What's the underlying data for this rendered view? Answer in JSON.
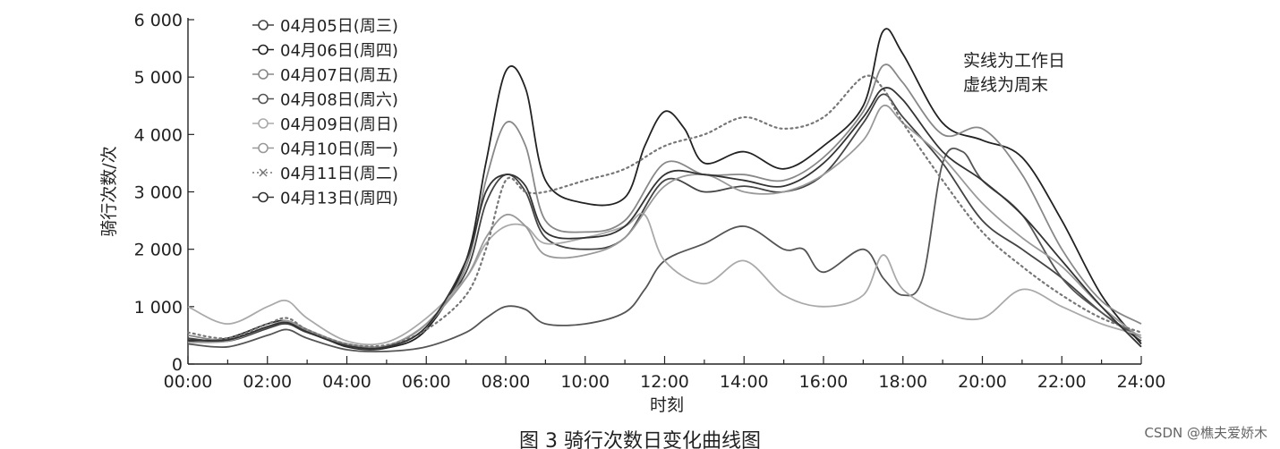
{
  "chart_data": {
    "type": "line",
    "title": "",
    "xlabel": "时刻",
    "ylabel": "骑行次数/次",
    "xlim": [
      0,
      24
    ],
    "ylim": [
      0,
      6000
    ],
    "x_tick_labels": [
      "00:00",
      "02:00",
      "04:00",
      "06:00",
      "08:00",
      "10:00",
      "12:00",
      "14:00",
      "16:00",
      "18:00",
      "20:00",
      "22:00",
      "24:00"
    ],
    "y_tick_labels": [
      "0",
      "1 000",
      "2 000",
      "3 000",
      "4 000",
      "5 000",
      "6 000"
    ],
    "grid": false,
    "legend_placement": "top-left",
    "annotations": [
      "实线为工作日",
      "虚线为周末"
    ],
    "caption": "图 3   骑行次数日变化曲线图",
    "series": [
      {
        "name": "04月05日(周三)",
        "style": "solid",
        "color": "#444444",
        "marker": "circle",
        "points": [
          [
            0,
            450
          ],
          [
            1,
            400
          ],
          [
            2,
            620
          ],
          [
            2.5,
            700
          ],
          [
            3,
            550
          ],
          [
            4,
            350
          ],
          [
            5,
            320
          ],
          [
            6,
            700
          ],
          [
            7,
            1600
          ],
          [
            7.5,
            2800
          ],
          [
            8,
            3300
          ],
          [
            8.5,
            3000
          ],
          [
            9,
            2200
          ],
          [
            10,
            2000
          ],
          [
            11,
            2200
          ],
          [
            12,
            3200
          ],
          [
            13,
            3000
          ],
          [
            14,
            3100
          ],
          [
            15,
            3000
          ],
          [
            16,
            3300
          ],
          [
            17,
            4200
          ],
          [
            17.5,
            4700
          ],
          [
            18,
            4300
          ],
          [
            19,
            3500
          ],
          [
            20,
            2500
          ],
          [
            21,
            2000
          ],
          [
            22,
            1500
          ],
          [
            23,
            900
          ],
          [
            24,
            400
          ]
        ]
      },
      {
        "name": "04月06日(周四)",
        "style": "solid",
        "color": "#222222",
        "marker": "circle",
        "points": [
          [
            0,
            400
          ],
          [
            1,
            450
          ],
          [
            2,
            700
          ],
          [
            2.5,
            750
          ],
          [
            3,
            600
          ],
          [
            4,
            300
          ],
          [
            5,
            280
          ],
          [
            6,
            600
          ],
          [
            7,
            1800
          ],
          [
            7.5,
            3500
          ],
          [
            8,
            5100
          ],
          [
            8.5,
            4800
          ],
          [
            9,
            3200
          ],
          [
            10,
            2800
          ],
          [
            11,
            2900
          ],
          [
            11.5,
            3800
          ],
          [
            12,
            4400
          ],
          [
            12.5,
            4100
          ],
          [
            13,
            3500
          ],
          [
            14,
            3700
          ],
          [
            15,
            3400
          ],
          [
            16,
            3800
          ],
          [
            17,
            4500
          ],
          [
            17.5,
            5800
          ],
          [
            18,
            5400
          ],
          [
            19,
            4200
          ],
          [
            20,
            3900
          ],
          [
            21,
            3600
          ],
          [
            22,
            2500
          ],
          [
            23,
            1200
          ],
          [
            24,
            350
          ]
        ]
      },
      {
        "name": "04月07日(周五)",
        "style": "solid",
        "color": "#888888",
        "marker": "circle",
        "points": [
          [
            0,
            500
          ],
          [
            1,
            420
          ],
          [
            2,
            650
          ],
          [
            2.5,
            720
          ],
          [
            3,
            580
          ],
          [
            4,
            320
          ],
          [
            5,
            300
          ],
          [
            6,
            650
          ],
          [
            7,
            1700
          ],
          [
            7.5,
            3200
          ],
          [
            8,
            4200
          ],
          [
            8.5,
            3800
          ],
          [
            9,
            2500
          ],
          [
            10,
            2300
          ],
          [
            11,
            2500
          ],
          [
            12,
            3500
          ],
          [
            13,
            3300
          ],
          [
            14,
            3300
          ],
          [
            15,
            3200
          ],
          [
            16,
            3600
          ],
          [
            17,
            4400
          ],
          [
            17.5,
            5200
          ],
          [
            18,
            4900
          ],
          [
            19,
            4000
          ],
          [
            20,
            4100
          ],
          [
            21,
            3300
          ],
          [
            22,
            2000
          ],
          [
            23,
            1100
          ],
          [
            24,
            700
          ]
        ]
      },
      {
        "name": "04月08日(周六)",
        "style": "solid",
        "color": "#555555",
        "marker": "circle",
        "points": [
          [
            0,
            350
          ],
          [
            1,
            300
          ],
          [
            2,
            500
          ],
          [
            2.5,
            600
          ],
          [
            3,
            450
          ],
          [
            4,
            250
          ],
          [
            5,
            220
          ],
          [
            6,
            300
          ],
          [
            7,
            550
          ],
          [
            7.5,
            800
          ],
          [
            8,
            1000
          ],
          [
            8.5,
            950
          ],
          [
            9,
            700
          ],
          [
            10,
            700
          ],
          [
            11,
            900
          ],
          [
            11.5,
            1300
          ],
          [
            12,
            1800
          ],
          [
            13,
            2100
          ],
          [
            14,
            2400
          ],
          [
            15,
            2000
          ],
          [
            15.5,
            2000
          ],
          [
            16,
            1600
          ],
          [
            17,
            2000
          ],
          [
            17.5,
            1500
          ],
          [
            18,
            1200
          ],
          [
            18.5,
            1500
          ],
          [
            19,
            3500
          ],
          [
            19.5,
            3700
          ],
          [
            20,
            3200
          ],
          [
            21,
            2600
          ],
          [
            22,
            1500
          ],
          [
            23,
            900
          ],
          [
            24,
            450
          ]
        ]
      },
      {
        "name": "04月09日(周日)",
        "style": "solid",
        "color": "#aaaaaa",
        "marker": "circle",
        "points": [
          [
            0,
            1000
          ],
          [
            1,
            700
          ],
          [
            2,
            1000
          ],
          [
            2.5,
            1100
          ],
          [
            3,
            800
          ],
          [
            4,
            400
          ],
          [
            5,
            380
          ],
          [
            6,
            800
          ],
          [
            7,
            1500
          ],
          [
            7.5,
            2100
          ],
          [
            8,
            2400
          ],
          [
            8.5,
            2400
          ],
          [
            9,
            2100
          ],
          [
            10,
            2200
          ],
          [
            11,
            2400
          ],
          [
            11.5,
            2600
          ],
          [
            12,
            1800
          ],
          [
            13,
            1400
          ],
          [
            14,
            1800
          ],
          [
            15,
            1200
          ],
          [
            16,
            1000
          ],
          [
            17,
            1200
          ],
          [
            17.5,
            1900
          ],
          [
            18,
            1300
          ],
          [
            19,
            900
          ],
          [
            20,
            800
          ],
          [
            21,
            1300
          ],
          [
            22,
            1000
          ],
          [
            23,
            700
          ],
          [
            24,
            500
          ]
        ]
      },
      {
        "name": "04月10日(周一)",
        "style": "solid",
        "color": "#999999",
        "marker": "circle",
        "points": [
          [
            0,
            380
          ],
          [
            1,
            400
          ],
          [
            2,
            650
          ],
          [
            2.5,
            750
          ],
          [
            3,
            600
          ],
          [
            4,
            350
          ],
          [
            5,
            320
          ],
          [
            6,
            700
          ],
          [
            7,
            1500
          ],
          [
            7.5,
            2200
          ],
          [
            8,
            2600
          ],
          [
            8.5,
            2400
          ],
          [
            9,
            1900
          ],
          [
            10,
            1900
          ],
          [
            11,
            2200
          ],
          [
            12,
            3100
          ],
          [
            13,
            3300
          ],
          [
            14,
            3000
          ],
          [
            15,
            3000
          ],
          [
            16,
            3300
          ],
          [
            17,
            3900
          ],
          [
            17.5,
            4500
          ],
          [
            18,
            4200
          ],
          [
            19,
            3600
          ],
          [
            20,
            2800
          ],
          [
            21,
            2200
          ],
          [
            22,
            1700
          ],
          [
            23,
            1000
          ],
          [
            24,
            450
          ]
        ]
      },
      {
        "name": "04月11日(周二)",
        "style": "dotted",
        "color": "#777777",
        "marker": "cross",
        "points": [
          [
            0,
            550
          ],
          [
            1,
            450
          ],
          [
            2,
            700
          ],
          [
            2.5,
            800
          ],
          [
            3,
            600
          ],
          [
            4,
            350
          ],
          [
            5,
            330
          ],
          [
            6,
            600
          ],
          [
            7,
            1200
          ],
          [
            7.5,
            2000
          ],
          [
            8,
            3200
          ],
          [
            8.5,
            3000
          ],
          [
            9,
            3000
          ],
          [
            10,
            3200
          ],
          [
            11,
            3400
          ],
          [
            12,
            3800
          ],
          [
            13,
            4000
          ],
          [
            14,
            4300
          ],
          [
            15,
            4100
          ],
          [
            16,
            4300
          ],
          [
            17,
            5000
          ],
          [
            17.5,
            4800
          ],
          [
            18,
            4200
          ],
          [
            19,
            3200
          ],
          [
            20,
            2300
          ],
          [
            21,
            1700
          ],
          [
            22,
            1200
          ],
          [
            23,
            800
          ],
          [
            24,
            550
          ]
        ]
      },
      {
        "name": "04月13日(周四)",
        "style": "solid",
        "color": "#333333",
        "marker": "circle",
        "points": [
          [
            0,
            420
          ],
          [
            1,
            420
          ],
          [
            2,
            650
          ],
          [
            2.5,
            720
          ],
          [
            3,
            560
          ],
          [
            4,
            320
          ],
          [
            5,
            300
          ],
          [
            6,
            650
          ],
          [
            7,
            1800
          ],
          [
            7.5,
            3000
          ],
          [
            8,
            3300
          ],
          [
            8.5,
            3100
          ],
          [
            9,
            2300
          ],
          [
            10,
            2200
          ],
          [
            11,
            2400
          ],
          [
            12,
            3300
          ],
          [
            13,
            3300
          ],
          [
            14,
            3200
          ],
          [
            15,
            3100
          ],
          [
            16,
            3500
          ],
          [
            17,
            4300
          ],
          [
            17.5,
            4800
          ],
          [
            18,
            4600
          ],
          [
            19,
            3700
          ],
          [
            20,
            3200
          ],
          [
            21,
            2600
          ],
          [
            22,
            1800
          ],
          [
            23,
            1000
          ],
          [
            24,
            300
          ]
        ]
      }
    ]
  },
  "watermark": "CSDN @樵夫爱娇木"
}
